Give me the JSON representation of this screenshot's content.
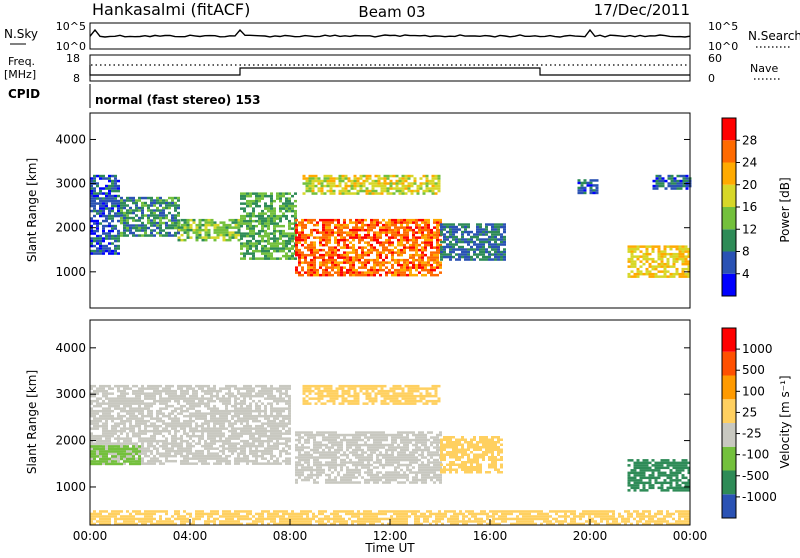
{
  "header": {
    "station": "Hankasalmi (fitACF)",
    "beam": "Beam 03",
    "date": "17/Dec/2011"
  },
  "top_panels": {
    "nsky_label": "N.Sky",
    "nsky_ticks": [
      "10^5",
      "10^0"
    ],
    "nsearch_label": "N.Search",
    "nsearch_ticks": [
      "10^5",
      "10^0"
    ],
    "freq_label": "Freq.",
    "freq_unit": "[MHz]",
    "freq_ticks": [
      "18",
      "8"
    ],
    "nave_label": "Nave",
    "nave_ticks": [
      "60",
      "0"
    ],
    "cpid_label": "CPID",
    "cpid_text": "normal (fast stereo) 153"
  },
  "chart_data": [
    {
      "type": "heatmap",
      "name": "power",
      "ylabel": "Slant Range [km]",
      "ylim": [
        180,
        4600
      ],
      "yticks": [
        "1000",
        "2000",
        "3000",
        "4000"
      ],
      "colorbar_label": "Power [dB]",
      "colorbar_ticks": [
        "28",
        "24",
        "20",
        "16",
        "12",
        "8",
        "4"
      ],
      "colorbar_colors": [
        "#0000ff",
        "#2a52b4",
        "#2e8b57",
        "#73c03c",
        "#d7d728",
        "#ffaa00",
        "#ff6a00",
        "#ff0000"
      ],
      "regions": [
        {
          "t": [
            0.0,
            1.2
          ],
          "r": [
            1400,
            3200
          ],
          "level": 6
        },
        {
          "t": [
            1.2,
            3.5
          ],
          "r": [
            1800,
            2700
          ],
          "level": 10
        },
        {
          "t": [
            3.5,
            6.0
          ],
          "r": [
            1700,
            2200
          ],
          "level": 14
        },
        {
          "t": [
            6.0,
            8.2
          ],
          "r": [
            1300,
            2800
          ],
          "level": 12
        },
        {
          "t": [
            8.2,
            14.0
          ],
          "r": [
            900,
            2200
          ],
          "level": 26
        },
        {
          "t": [
            8.5,
            14.0
          ],
          "r": [
            2800,
            3200
          ],
          "level": 18
        },
        {
          "t": [
            14.0,
            16.6
          ],
          "r": [
            1300,
            2100
          ],
          "level": 8
        },
        {
          "t": [
            19.5,
            20.3
          ],
          "r": [
            2800,
            3100
          ],
          "level": 6
        },
        {
          "t": [
            21.5,
            24.0
          ],
          "r": [
            900,
            1600
          ],
          "level": 20
        },
        {
          "t": [
            22.5,
            24.0
          ],
          "r": [
            2900,
            3200
          ],
          "level": 6
        }
      ]
    },
    {
      "type": "heatmap",
      "name": "velocity",
      "xlabel": "Time UT",
      "ylabel": "Slant Range [km]",
      "ylim": [
        180,
        4600
      ],
      "yticks": [
        "1000",
        "2000",
        "3000",
        "4000"
      ],
      "xticks": [
        "00:00",
        "04:00",
        "08:00",
        "12:00",
        "16:00",
        "20:00",
        "00:00"
      ],
      "colorbar_label": "Velocity [m s⁻¹]",
      "colorbar_ticks": [
        "1000",
        "500",
        "100",
        "25",
        "-25",
        "-100",
        "-500",
        "-1000"
      ],
      "colorbar_colors": [
        "#2a52b4",
        "#2e8b57",
        "#73c03c",
        "#c8c8c0",
        "#ffd060",
        "#ff9a00",
        "#ff5000",
        "#ff0000"
      ],
      "regions": [
        {
          "t": [
            0.0,
            8.0
          ],
          "r": [
            1500,
            3200
          ],
          "level": 0
        },
        {
          "t": [
            0.0,
            2.0
          ],
          "r": [
            1500,
            1900
          ],
          "level": 60
        },
        {
          "t": [
            8.2,
            14.0
          ],
          "r": [
            1100,
            2200
          ],
          "level": 0
        },
        {
          "t": [
            8.5,
            14.0
          ],
          "r": [
            2800,
            3200
          ],
          "level": -80
        },
        {
          "t": [
            14.0,
            16.5
          ],
          "r": [
            1300,
            2100
          ],
          "level": -60
        },
        {
          "t": [
            21.5,
            24.0
          ],
          "r": [
            900,
            1600
          ],
          "level": 300
        },
        {
          "t": [
            0.0,
            24.0
          ],
          "r": [
            200,
            500
          ],
          "level": -40
        }
      ]
    }
  ]
}
